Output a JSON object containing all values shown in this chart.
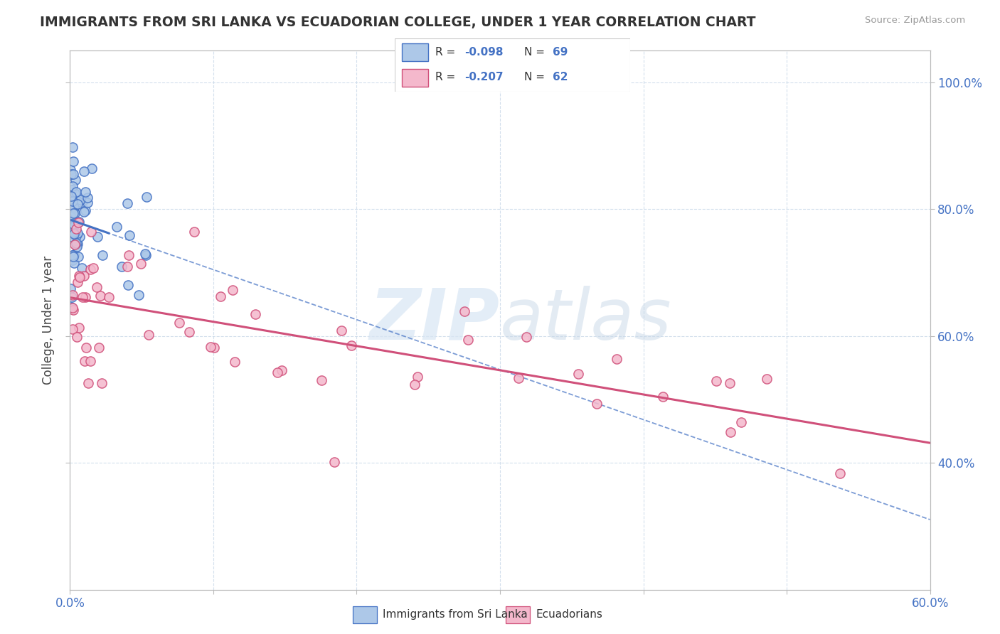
{
  "title": "IMMIGRANTS FROM SRI LANKA VS ECUADORIAN COLLEGE, UNDER 1 YEAR CORRELATION CHART",
  "source": "Source: ZipAtlas.com",
  "ylabel": "College, Under 1 year",
  "x_min": 0.0,
  "x_max": 0.6,
  "y_min": 0.2,
  "y_max": 1.05,
  "y_ticks": [
    0.4,
    0.6,
    0.8,
    1.0
  ],
  "y_tick_labels": [
    "40.0%",
    "60.0%",
    "80.0%",
    "100.0%"
  ],
  "sri_lanka_color": "#adc8e8",
  "sri_lanka_edge": "#4472c4",
  "ecuadorian_color": "#f4b8cc",
  "ecuadorian_edge": "#d0507a",
  "sri_lanka_r": -0.098,
  "sri_lanka_n": 69,
  "ecuadorian_r": -0.207,
  "ecuadorian_n": 62,
  "legend_sri_lanka": "Immigrants from Sri Lanka",
  "legend_ecuadorians": "Ecuadorians",
  "watermark_zip": "ZIP",
  "watermark_atlas": "atlas"
}
